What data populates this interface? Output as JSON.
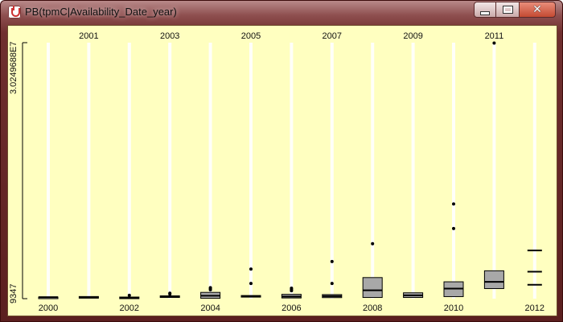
{
  "window": {
    "title": "PB(tpmC|Availability_Date_year)",
    "controls": {
      "minimize_icon": "minimize-icon",
      "maximize_icon": "maximize-icon",
      "close_icon": "close-icon"
    }
  },
  "chart_data": {
    "type": "boxplot",
    "y_axis": {
      "min_label": "9347",
      "max_label": "3.0249688E7",
      "min": 9347,
      "max": 30249688
    },
    "categories": [
      "2000",
      "2001",
      "2002",
      "2003",
      "2004",
      "2005",
      "2006",
      "2007",
      "2008",
      "2009",
      "2010",
      "2011",
      "2012"
    ],
    "boxes": [
      {
        "year": "2000",
        "q1": 180000,
        "median": 190000,
        "q3": 200000,
        "min": 180000,
        "max": 200000,
        "outliers": []
      },
      {
        "year": "2001",
        "q1": 110000,
        "median": 140000,
        "q3": 260000,
        "min": 90000,
        "max": 300000,
        "outliers": []
      },
      {
        "year": "2002",
        "q1": 90000,
        "median": 120000,
        "q3": 200000,
        "min": 60000,
        "max": 240000,
        "outliers": [
          400000
        ]
      },
      {
        "year": "2003",
        "q1": 200000,
        "median": 280000,
        "q3": 340000,
        "min": 150000,
        "max": 400000,
        "outliers": [
          550000,
          650000
        ]
      },
      {
        "year": "2004",
        "q1": 50000,
        "median": 350000,
        "q3": 750000,
        "min": 20000,
        "max": 900000,
        "outliers": [
          1050000,
          1200000,
          1300000
        ]
      },
      {
        "year": "2005",
        "q1": 230000,
        "median": 290000,
        "q3": 380000,
        "min": 150000,
        "max": 430000,
        "outliers": [
          1800000,
          3500000
        ]
      },
      {
        "year": "2006",
        "q1": 90000,
        "median": 260000,
        "q3": 520000,
        "min": 40000,
        "max": 600000,
        "outliers": [
          950000,
          1100000,
          1250000
        ]
      },
      {
        "year": "2007",
        "q1": 130000,
        "median": 310000,
        "q3": 490000,
        "min": 50000,
        "max": 560000,
        "outliers": [
          1800000,
          4400000
        ]
      },
      {
        "year": "2008",
        "q1": 150000,
        "median": 1000000,
        "q3": 2500000,
        "min": 150000,
        "max": 2500000,
        "outliers": [
          6500000
        ]
      },
      {
        "year": "2009",
        "q1": 150000,
        "median": 400000,
        "q3": 700000,
        "min": 100000,
        "max": 700000,
        "outliers": []
      },
      {
        "year": "2010",
        "q1": 250000,
        "median": 1200000,
        "q3": 2000000,
        "min": 200000,
        "max": 2000000,
        "outliers": [
          8300000,
          11200000
        ]
      },
      {
        "year": "2011",
        "q1": 1200000,
        "median": 2000000,
        "q3": 3300000,
        "min": 1200000,
        "max": 3300000,
        "outliers": [
          30200000
        ]
      },
      {
        "year": "2012",
        "q1": 1650000,
        "median": 3200000,
        "q3": 5700000,
        "min": 1650000,
        "max": 5700000,
        "outliers": [],
        "markers_only": true
      }
    ]
  }
}
